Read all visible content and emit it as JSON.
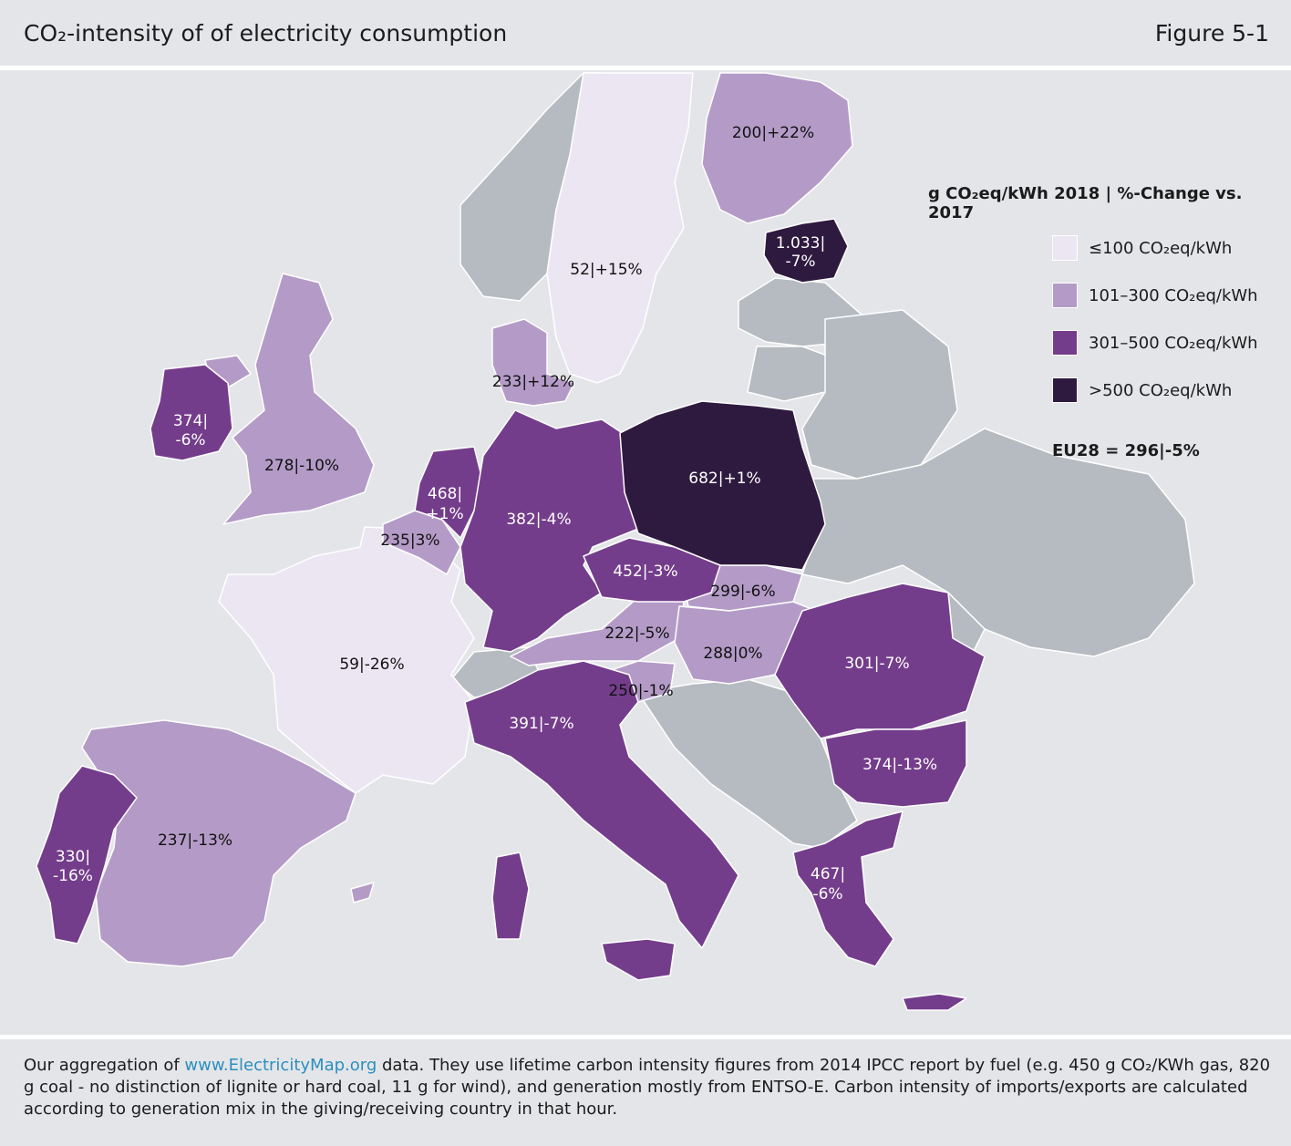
{
  "header": {
    "title": "CO₂-intensity of of electricity consumption",
    "figure": "Figure 5-1"
  },
  "legend": {
    "title": "g CO₂eq/kWh 2018 | %-Change vs. 2017",
    "items": [
      {
        "label": "≤100 CO₂eq/kWh",
        "color": "#ece6f2"
      },
      {
        "label": "101–300 CO₂eq/kWh",
        "color": "#b49bc7"
      },
      {
        "label": "301–500 CO₂eq/kWh",
        "color": "#743d8b"
      },
      {
        "label": ">500 CO₂eq/kWh",
        "color": "#2f1a3f"
      }
    ],
    "eu28": "EU28 = 296|-5%"
  },
  "no_data_color": "#b5bbc1",
  "countries": {
    "finland": {
      "label": "200|+22%"
    },
    "sweden": {
      "label": "52|+15%"
    },
    "estonia": {
      "label1": "1.033|",
      "label2": "-7%"
    },
    "denmark": {
      "label": "233|+12%"
    },
    "ireland": {
      "label1": "374|",
      "label2": "-6%"
    },
    "uk": {
      "label": "278|-10%"
    },
    "netherlands": {
      "label1": "468|",
      "label2": "+1%"
    },
    "belgium": {
      "label": "235|3%"
    },
    "germany": {
      "label": "382|-4%"
    },
    "poland": {
      "label": "682|+1%"
    },
    "czechia": {
      "label": "452|-3%"
    },
    "slovakia": {
      "label": "299|-6%"
    },
    "austria": {
      "label": "222|-5%"
    },
    "hungary": {
      "label": "288|0%"
    },
    "romania": {
      "label": "301|-7%"
    },
    "france": {
      "label": "59|-26%"
    },
    "slovenia": {
      "label": "250|-1%"
    },
    "italy": {
      "label": "391|-7%"
    },
    "bulgaria": {
      "label": "374|-13%"
    },
    "portugal": {
      "label1": "330|",
      "label2": "-16%"
    },
    "spain": {
      "label": "237|-13%"
    },
    "greece": {
      "label1": "467|",
      "label2": "-6%"
    }
  },
  "footer": {
    "text_before": "Our aggregation of ",
    "link": "www.ElectricityMap.org",
    "text_after": " data. They use lifetime carbon intensity figures from 2014 IPCC report by fuel (e.g. 450 g CO₂/KWh gas, 820 g coal - no distinction of lignite or hard coal, 11 g for wind), and generation mostly from ENTSO-E. Carbon intensity of imports/exports are calculated according to generation mix in the giving/receiving country in that hour."
  }
}
